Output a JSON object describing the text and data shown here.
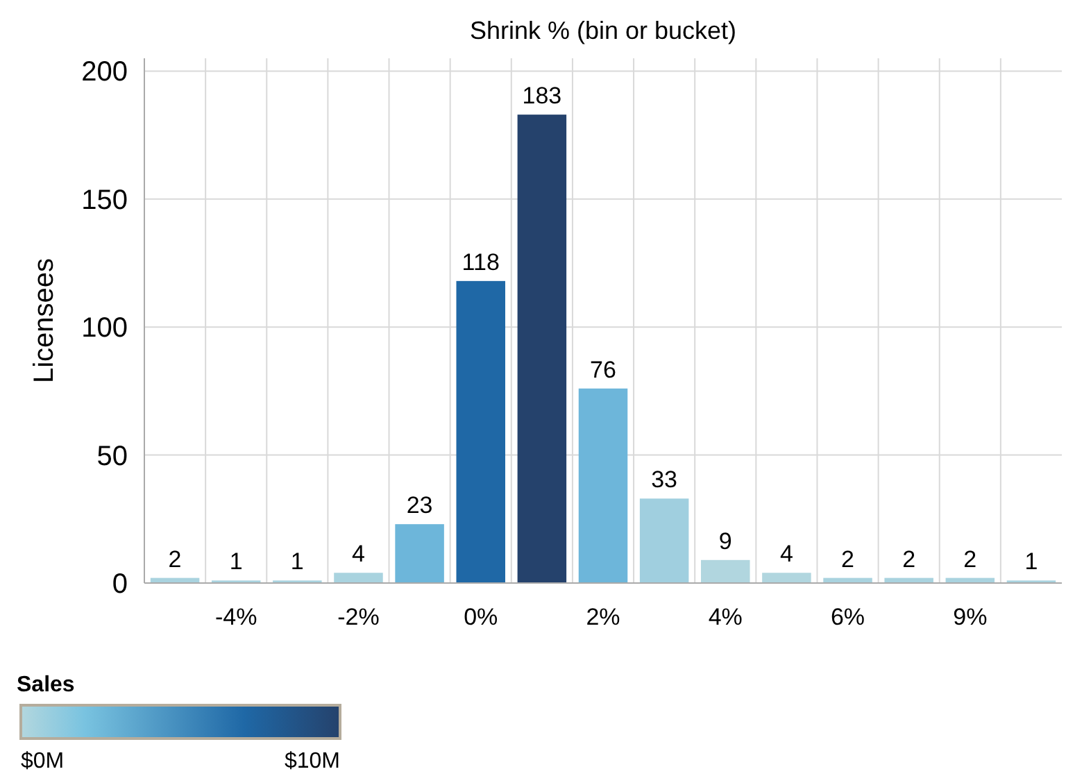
{
  "chart_data": {
    "type": "bar",
    "xlabel": "Shrink % (bin or bucket)",
    "ylabel": "Licensees",
    "categories": [
      null,
      "-4%",
      null,
      "-2%",
      null,
      "0%",
      null,
      "2%",
      null,
      "4%",
      null,
      "6%",
      null,
      "9%",
      null
    ],
    "values": [
      2,
      1,
      1,
      4,
      23,
      118,
      183,
      76,
      33,
      9,
      4,
      2,
      2,
      2,
      1
    ],
    "colors": [
      "#a9d3df",
      "#a9d3df",
      "#a9d3df",
      "#a9d3df",
      "#6db6da",
      "#1f68a6",
      "#25426c",
      "#6db6da",
      "#a0cfdf",
      "#b1d6df",
      "#b1d6df",
      "#a9d3df",
      "#a9d3df",
      "#a9d3df",
      "#a9d3df"
    ],
    "ylim": [
      0,
      205
    ],
    "yticks": [
      0,
      50,
      100,
      150,
      200
    ],
    "grid": true,
    "data_labels": true,
    "clabel": "Sales",
    "clim": [
      0,
      10
    ],
    "cticks": [
      {
        "value": 0,
        "label": "$0M"
      },
      {
        "value": 10,
        "label": "$10M"
      }
    ]
  }
}
